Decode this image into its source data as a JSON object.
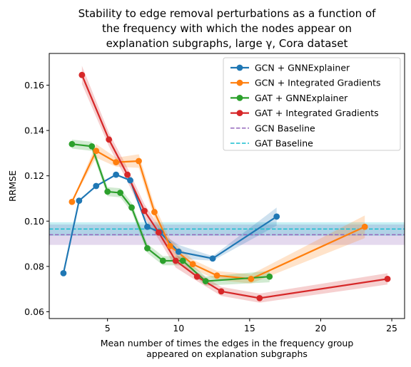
{
  "chart_data": {
    "type": "line",
    "title": [
      "Stability to edge removal perturbations as a function of",
      "the frequency with which the nodes appear on",
      "explanation subgraphs, large γ, Cora dataset"
    ],
    "xlabel": [
      "Mean number of times the edges in the frequency group",
      "appeared on explanation subgraphs"
    ],
    "ylabel": "RRMSE",
    "xlim": [
      0.9,
      25.9
    ],
    "ylim": [
      0.057,
      0.174
    ],
    "xticks": [
      5,
      10,
      15,
      20,
      25
    ],
    "xtick_labels": [
      "5",
      "10",
      "15",
      "20",
      "25"
    ],
    "yticks": [
      0.06,
      0.08,
      0.1,
      0.12,
      0.14,
      0.16
    ],
    "ytick_labels": [
      "0.06",
      "0.08",
      "0.10",
      "0.12",
      "0.14",
      "0.16"
    ],
    "grid": false,
    "legend_position": "upper right",
    "series": [
      {
        "name": "GCN + GNNExplainer",
        "color": "#1f77b4",
        "style": "line-marker",
        "points": [
          [
            1.9,
            0.077
          ],
          [
            3.0,
            0.109
          ],
          [
            4.2,
            0.1155
          ],
          [
            5.6,
            0.1205
          ],
          [
            6.6,
            0.118
          ],
          [
            7.8,
            0.0975
          ],
          [
            8.7,
            0.095
          ],
          [
            10.0,
            0.0865
          ],
          [
            12.4,
            0.0835
          ],
          [
            16.9,
            0.102
          ]
        ],
        "band_halfwidth": [
          0.0,
          0.0,
          0.0,
          0.0,
          0.0,
          0.0,
          0.0,
          0.003,
          0.001,
          0.004
        ]
      },
      {
        "name": "GCN + Integrated Gradients",
        "color": "#ff7f0e",
        "style": "line-marker",
        "points": [
          [
            2.5,
            0.1085
          ],
          [
            4.2,
            0.131
          ],
          [
            5.6,
            0.126
          ],
          [
            7.2,
            0.1265
          ],
          [
            8.3,
            0.104
          ],
          [
            9.4,
            0.089
          ],
          [
            11.0,
            0.081
          ],
          [
            12.7,
            0.076
          ],
          [
            15.1,
            0.0745
          ],
          [
            23.1,
            0.0975
          ]
        ],
        "band_halfwidth": [
          0.0,
          0.003,
          0.002,
          0.003,
          0.003,
          0.003,
          0.002,
          0.002,
          0.002,
          0.005
        ]
      },
      {
        "name": "GAT + GNNExplainer",
        "color": "#2ca02c",
        "style": "line-marker",
        "points": [
          [
            2.5,
            0.134
          ],
          [
            3.9,
            0.133
          ],
          [
            5.0,
            0.113
          ],
          [
            5.9,
            0.1125
          ],
          [
            6.7,
            0.106
          ],
          [
            7.8,
            0.088
          ],
          [
            8.9,
            0.0825
          ],
          [
            10.3,
            0.0825
          ],
          [
            11.9,
            0.0735
          ],
          [
            16.4,
            0.0755
          ]
        ],
        "band_halfwidth": [
          0.002,
          0.002,
          0.002,
          0.002,
          0.002,
          0.002,
          0.002,
          0.002,
          0.002,
          0.0025
        ]
      },
      {
        "name": "GAT + Integrated Gradients",
        "color": "#d62728",
        "style": "line-marker",
        "points": [
          [
            3.2,
            0.1645
          ],
          [
            5.1,
            0.136
          ],
          [
            6.4,
            0.1205
          ],
          [
            7.6,
            0.1045
          ],
          [
            8.6,
            0.095
          ],
          [
            9.8,
            0.0825
          ],
          [
            11.3,
            0.0755
          ],
          [
            13.0,
            0.069
          ],
          [
            15.7,
            0.066
          ],
          [
            24.7,
            0.0745
          ]
        ],
        "band_halfwidth": [
          0.004,
          0.003,
          0.003,
          0.003,
          0.003,
          0.003,
          0.002,
          0.002,
          0.002,
          0.0025
        ]
      },
      {
        "name": "GCN Baseline",
        "color": "#9467bd",
        "style": "dashed",
        "y": 0.094,
        "band": [
          0.0895,
          0.0985
        ]
      },
      {
        "name": "GAT Baseline",
        "color": "#17becf",
        "style": "dashed",
        "y": 0.0965,
        "band": [
          0.0935,
          0.0995
        ]
      }
    ]
  }
}
